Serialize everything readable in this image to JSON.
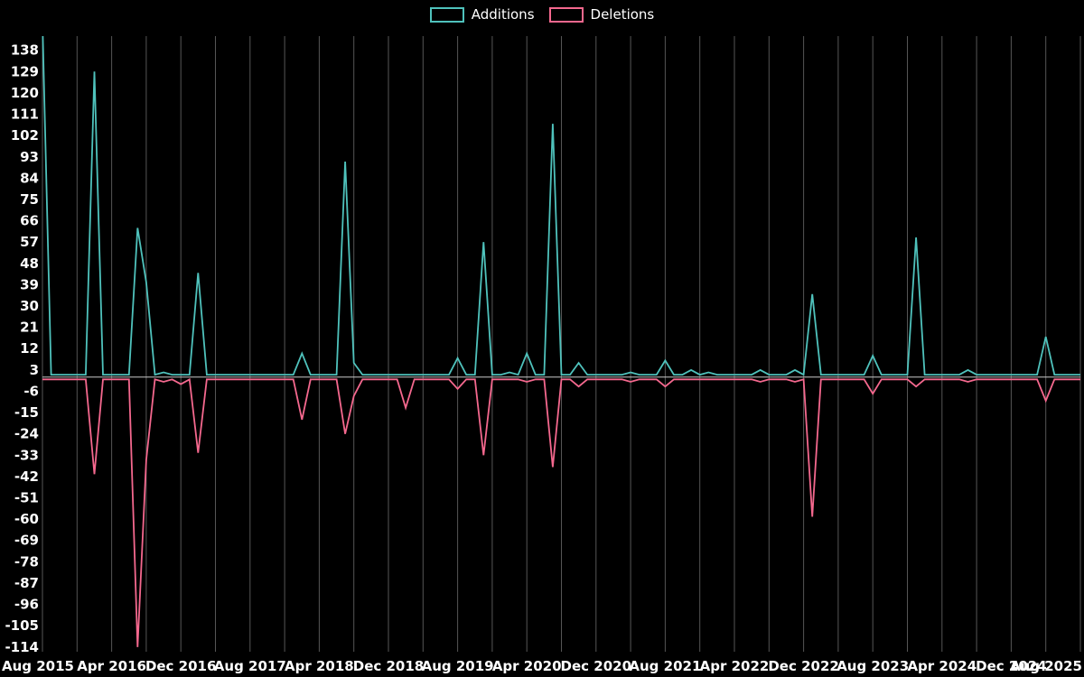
{
  "chart_data": {
    "type": "line",
    "title": "",
    "xlabel": "",
    "ylabel": "",
    "legend": [
      "Additions",
      "Deletions"
    ],
    "legend_position": "top-center",
    "grid": "vertical-only",
    "colors": {
      "background": "#000000",
      "additions": "#4fc2bc",
      "deletions": "#f4688e",
      "grid": "#565656",
      "zero_line": "#c9c9c9",
      "text": "#ffffff"
    },
    "x_axis": {
      "start_month": "2015-08",
      "end_month": "2025-08",
      "months_total": 121,
      "tick_every_months": 8,
      "gridline_every_months": 4,
      "tick_labels": [
        "Aug 2015",
        "Apr 2016",
        "Dec 2016",
        "Aug 2017",
        "Apr 2018",
        "Dec 2018",
        "Aug 2019",
        "Apr 2020",
        "Dec 2020",
        "Aug 2021",
        "Apr 2022",
        "Dec 2022",
        "Aug 2023",
        "Apr 2024",
        "Dec 2024",
        "Aug 2025"
      ]
    },
    "y_axis": {
      "ticks": [
        138,
        129,
        120,
        111,
        102,
        93,
        84,
        75,
        66,
        57,
        48,
        39,
        30,
        21,
        12,
        3,
        -6,
        -15,
        -24,
        -33,
        -42,
        -51,
        -60,
        -69,
        -78,
        -87,
        -96,
        -105,
        -114
      ],
      "min": -116,
      "max": 144
    },
    "baseline": {
      "additions": 1,
      "deletions": -1
    },
    "deletions_plotted_negative": true,
    "spikes": [
      {
        "month": "2015-08",
        "additions": 150,
        "deletions": 0
      },
      {
        "month": "2016-02",
        "additions": 129,
        "deletions": -41
      },
      {
        "month": "2016-07",
        "additions": 63,
        "deletions": -114
      },
      {
        "month": "2016-08",
        "additions": 40,
        "deletions": -35
      },
      {
        "month": "2016-10",
        "additions": 2,
        "deletions": -2
      },
      {
        "month": "2016-12",
        "additions": 1,
        "deletions": -3
      },
      {
        "month": "2017-02",
        "additions": 44,
        "deletions": -32
      },
      {
        "month": "2018-02",
        "additions": 10,
        "deletions": -18
      },
      {
        "month": "2018-07",
        "additions": 91,
        "deletions": -24
      },
      {
        "month": "2018-08",
        "additions": 6,
        "deletions": -8
      },
      {
        "month": "2019-02",
        "additions": 1,
        "deletions": -13
      },
      {
        "month": "2019-08",
        "additions": 8,
        "deletions": -5
      },
      {
        "month": "2019-11",
        "additions": 57,
        "deletions": -33
      },
      {
        "month": "2020-02",
        "additions": 2,
        "deletions": -1
      },
      {
        "month": "2020-04",
        "additions": 10,
        "deletions": -2
      },
      {
        "month": "2020-07",
        "additions": 107,
        "deletions": -38
      },
      {
        "month": "2020-10",
        "additions": 6,
        "deletions": -4
      },
      {
        "month": "2021-04",
        "additions": 2,
        "deletions": -2
      },
      {
        "month": "2021-08",
        "additions": 7,
        "deletions": -4
      },
      {
        "month": "2021-11",
        "additions": 3,
        "deletions": -1
      },
      {
        "month": "2022-01",
        "additions": 2,
        "deletions": -1
      },
      {
        "month": "2022-07",
        "additions": 3,
        "deletions": -2
      },
      {
        "month": "2022-11",
        "additions": 3,
        "deletions": -2
      },
      {
        "month": "2023-01",
        "additions": 35,
        "deletions": -59
      },
      {
        "month": "2023-08",
        "additions": 9,
        "deletions": -7
      },
      {
        "month": "2024-01",
        "additions": 59,
        "deletions": -4
      },
      {
        "month": "2024-07",
        "additions": 3,
        "deletions": -2
      },
      {
        "month": "2025-04",
        "additions": 17,
        "deletions": -10
      }
    ]
  }
}
